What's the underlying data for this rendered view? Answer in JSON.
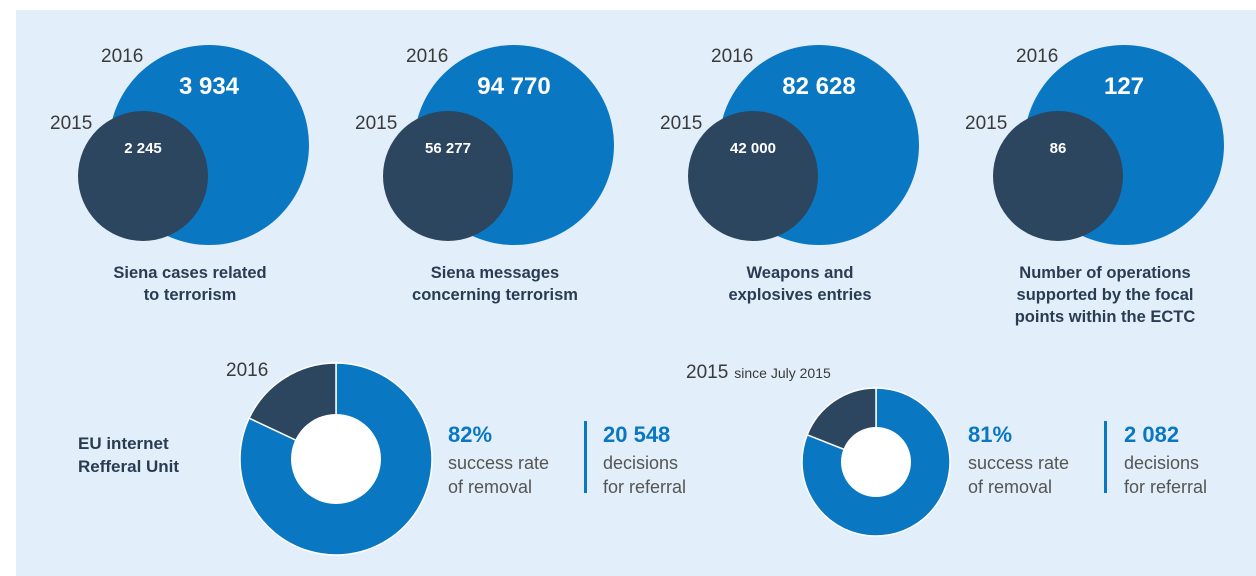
{
  "colors": {
    "background": "#e2eef9",
    "year_2016": "#0a77c3",
    "year_2015": "#2c4660",
    "caption": "#2a3c52",
    "accent_text": "#0a77c3"
  },
  "chart_data": [
    {
      "type": "bubble",
      "caption": [
        "Siena cases related",
        "to terrorism"
      ],
      "series": [
        {
          "name": "2016",
          "value": 3934,
          "label": "3 934"
        },
        {
          "name": "2015",
          "value": 2245,
          "label": "2 245"
        }
      ]
    },
    {
      "type": "bubble",
      "caption": [
        "Siena messages",
        "concerning terrorism"
      ],
      "series": [
        {
          "name": "2016",
          "value": 94770,
          "label": "94 770"
        },
        {
          "name": "2015",
          "value": 56277,
          "label": "56 277"
        }
      ]
    },
    {
      "type": "bubble",
      "caption": [
        "Weapons and",
        "explosives entries"
      ],
      "series": [
        {
          "name": "2016",
          "value": 82628,
          "label": "82 628"
        },
        {
          "name": "2015",
          "value": 42000,
          "label": "42 000"
        }
      ]
    },
    {
      "type": "bubble",
      "caption": [
        "Number of operations",
        "supported by the focal",
        "points within the ECTC"
      ],
      "series": [
        {
          "name": "2016",
          "value": 127,
          "label": "127"
        },
        {
          "name": "2015",
          "value": 86,
          "label": "86"
        }
      ]
    },
    {
      "type": "pie",
      "year_label": "2016",
      "year_note": "",
      "slices": [
        {
          "name": "success rate of removal",
          "value": 82
        },
        {
          "name": "remaining",
          "value": 18
        }
      ],
      "percent_label": "82%",
      "percent_desc": [
        "success rate",
        "of removal"
      ],
      "decisions_label": "20 548",
      "decisions_desc": [
        "decisions",
        "for referral"
      ]
    },
    {
      "type": "pie",
      "year_label": "2015",
      "year_note": "since July 2015",
      "slices": [
        {
          "name": "success rate of removal",
          "value": 81
        },
        {
          "name": "remaining",
          "value": 19
        }
      ],
      "percent_label": "81%",
      "percent_desc": [
        "success rate",
        "of removal"
      ],
      "decisions_label": "2 082",
      "decisions_desc": [
        "decisions",
        "for referral"
      ]
    }
  ],
  "unit_label": [
    "EU internet",
    "Refferal Unit"
  ]
}
